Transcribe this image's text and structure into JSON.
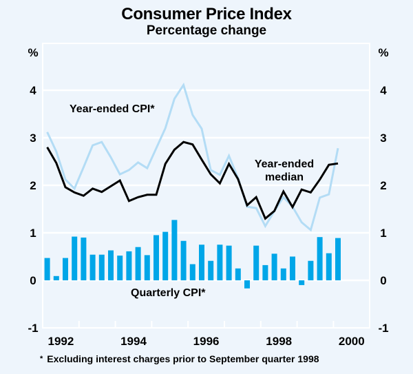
{
  "header": {
    "title": "Consumer Price Index",
    "subtitle": "Percentage change"
  },
  "footnote": {
    "marker": "*",
    "text": "Excluding interest charges prior to September quarter 1998"
  },
  "colors": {
    "background": "#eef5fc",
    "gridline": "#ffffff",
    "quarterly_bar": "#00a6e8",
    "year_ended_cpi": "#b3dcf5",
    "year_ended_median": "#000000"
  },
  "chart_data": {
    "type": "bar+line",
    "title": "Consumer Price Index",
    "subtitle": "Percentage change",
    "xlabel": "",
    "ylabel_left": "%",
    "ylabel_right": "%",
    "ylim": [
      -1,
      4.8
    ],
    "yticks": [
      -1,
      0,
      1,
      2,
      3,
      4
    ],
    "ytick_labels": [
      "-1",
      "0",
      "1",
      "2",
      "3",
      "4"
    ],
    "xlim": [
      1992.0,
      2000.75
    ],
    "xtick_labels": [
      "1992",
      "1994",
      "1996",
      "1998",
      "2000"
    ],
    "grid": true,
    "x_start_quarter": "1992 Q1",
    "x": [
      "1992Q1",
      "1992Q2",
      "1992Q3",
      "1992Q4",
      "1993Q1",
      "1993Q2",
      "1993Q3",
      "1993Q4",
      "1994Q1",
      "1994Q2",
      "1994Q3",
      "1994Q4",
      "1995Q1",
      "1995Q2",
      "1995Q3",
      "1995Q4",
      "1996Q1",
      "1996Q2",
      "1996Q3",
      "1996Q4",
      "1997Q1",
      "1997Q2",
      "1997Q3",
      "1997Q4",
      "1998Q1",
      "1998Q2",
      "1998Q3",
      "1998Q4",
      "1999Q1",
      "1999Q2",
      "1999Q3",
      "1999Q4",
      "2000Q1"
    ],
    "series": [
      {
        "name": "Quarterly CPI*",
        "type": "bar",
        "values": [
          0.47,
          0.09,
          0.47,
          0.92,
          0.9,
          0.54,
          0.54,
          0.63,
          0.52,
          0.61,
          0.7,
          0.53,
          0.95,
          1.02,
          1.27,
          0.83,
          0.34,
          0.75,
          0.41,
          0.75,
          0.73,
          0.25,
          -0.17,
          0.73,
          0.32,
          0.56,
          0.25,
          0.5,
          -0.1,
          0.41,
          0.91,
          0.57,
          0.89
        ]
      },
      {
        "name": "Year-ended CPI*",
        "type": "line",
        "values": [
          3.12,
          2.71,
          2.12,
          1.93,
          2.38,
          2.84,
          2.91,
          2.59,
          2.23,
          2.32,
          2.48,
          2.36,
          2.78,
          3.2,
          3.82,
          4.11,
          3.48,
          3.19,
          2.32,
          2.22,
          2.62,
          2.15,
          1.55,
          1.52,
          1.14,
          1.46,
          1.75,
          1.55,
          1.22,
          1.06,
          1.74,
          1.81,
          2.78
        ]
      },
      {
        "name": "Year-ended median",
        "type": "line",
        "values": [
          2.8,
          2.47,
          1.96,
          1.85,
          1.78,
          1.93,
          1.86,
          1.98,
          2.1,
          1.67,
          1.75,
          1.8,
          1.8,
          2.45,
          2.75,
          2.91,
          2.86,
          2.54,
          2.23,
          2.04,
          2.45,
          2.13,
          1.58,
          1.75,
          1.3,
          1.46,
          1.87,
          1.54,
          1.91,
          1.85,
          2.12,
          2.43,
          2.46
        ]
      }
    ],
    "annotations": [
      {
        "text": "Year-ended CPI*",
        "series": "Year-ended CPI*"
      },
      {
        "text": "Year-ended",
        "series": "Year-ended median"
      },
      {
        "text": "median",
        "series": "Year-ended median"
      },
      {
        "text": "Quarterly CPI*",
        "series": "Quarterly CPI*"
      }
    ]
  }
}
